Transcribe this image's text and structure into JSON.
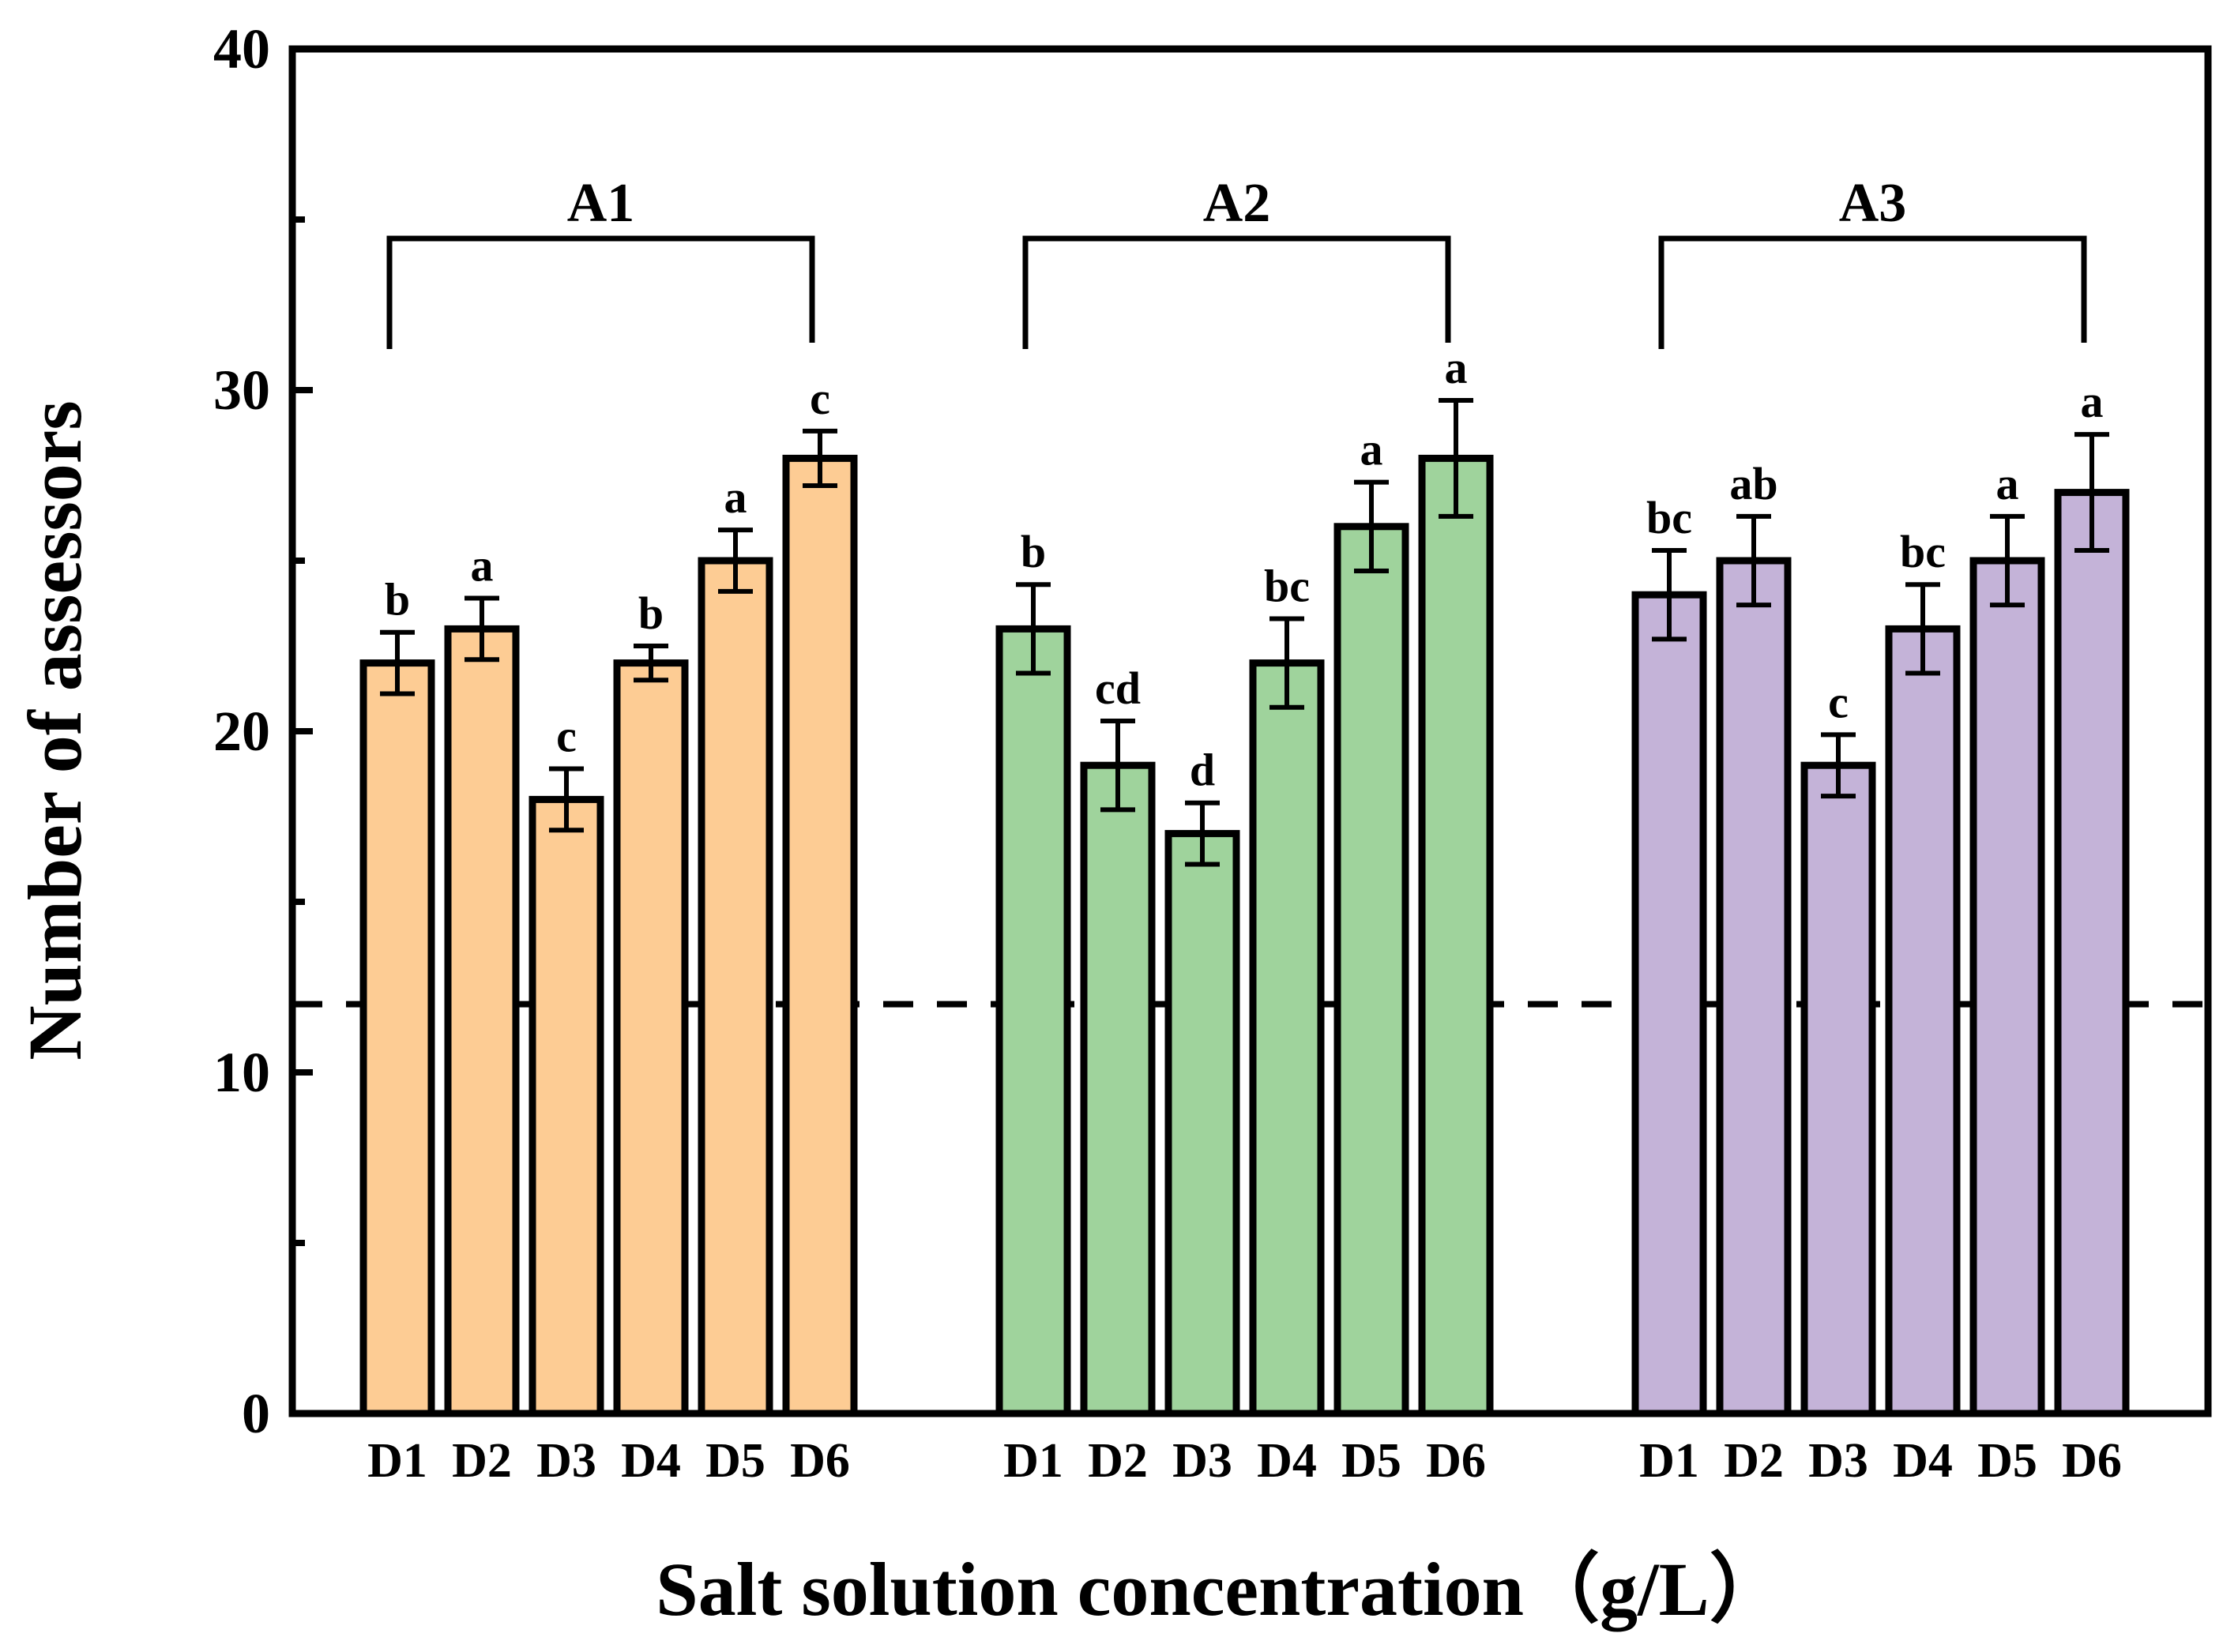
{
  "chart_data": {
    "type": "bar",
    "xlabel": "Salt solution concentration（g/L）",
    "ylabel": "Number of assessors",
    "ylim": [
      0,
      40
    ],
    "yticks": [
      0,
      10,
      20,
      30,
      40
    ],
    "reference_line": 12,
    "categories": [
      "D1",
      "D2",
      "D3",
      "D4",
      "D5",
      "D6"
    ],
    "groups": [
      {
        "name": "A1",
        "color": "#FDCC94",
        "values": [
          22,
          23,
          18,
          22,
          25,
          28
        ],
        "errors": [
          0.9,
          0.9,
          0.9,
          0.5,
          0.9,
          0.8
        ],
        "letters": [
          "b",
          "a",
          "c",
          "b",
          "a",
          "c"
        ]
      },
      {
        "name": "A2",
        "color": "#9FD39C",
        "values": [
          23,
          19,
          17,
          22,
          26,
          28
        ],
        "errors": [
          1.3,
          1.3,
          0.9,
          1.3,
          1.3,
          1.7
        ],
        "letters": [
          "b",
          "cd",
          "d",
          "bc",
          "a",
          "a"
        ]
      },
      {
        "name": "A3",
        "color": "#C4B3D8",
        "values": [
          24,
          25,
          19,
          23,
          25,
          27
        ],
        "errors": [
          1.3,
          1.3,
          0.9,
          1.3,
          1.3,
          1.7
        ],
        "letters": [
          "bc",
          "ab",
          "c",
          "bc",
          "a",
          "a"
        ]
      }
    ]
  }
}
